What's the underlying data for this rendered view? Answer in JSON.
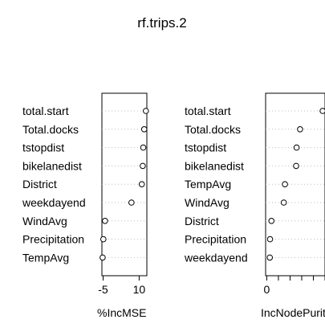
{
  "chart_data": [
    {
      "type": "dotchart",
      "title": "rf.trips.2",
      "xlabel": "%IncMSE",
      "x_ticks": [
        -5,
        10
      ],
      "x_tick_labels": [
        "-5",
        "10"
      ],
      "xlim": [
        -5.5,
        13.2
      ],
      "categories": [
        "total.start",
        "Total.docks",
        "tstopdist",
        "bikelanedist",
        "District",
        "weekdayend",
        "WindAvg",
        "Precipitation",
        "TempAvg"
      ],
      "values": [
        12.8,
        12.1,
        11.7,
        11.5,
        11.1,
        6.8,
        -4.2,
        -4.9,
        -5.2
      ]
    },
    {
      "type": "dotchart",
      "xlabel": "IncNodePurity",
      "x_ticks": [
        0,
        5000,
        10000,
        15000,
        20000,
        25000
      ],
      "x_tick_labels": [
        "0",
        "",
        "",
        "",
        "",
        ""
      ],
      "xlim": [
        -500,
        25000
      ],
      "categories": [
        "total.start",
        "Total.docks",
        "tstopdist",
        "bikelanedist",
        "TempAvg",
        "WindAvg",
        "District",
        "Precipitation",
        "weekdayend"
      ],
      "values": [
        24000,
        14300,
        12800,
        12600,
        7800,
        7300,
        2000,
        1400,
        1300
      ]
    }
  ]
}
